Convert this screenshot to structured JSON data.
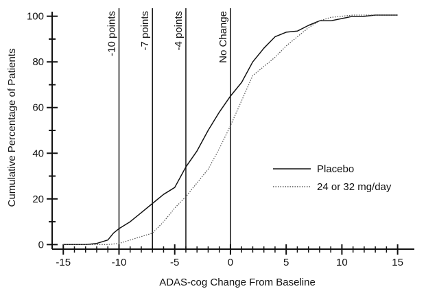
{
  "chart_data": {
    "type": "line",
    "title": "",
    "xlabel": "ADAS-cog Change From Baseline",
    "ylabel": "Cumulative Percentage of Patients",
    "xlim": [
      -16,
      16.5
    ],
    "ylim": [
      -2,
      102
    ],
    "xticks": [
      -15,
      -10,
      -5,
      0,
      5,
      10,
      15
    ],
    "yticks": [
      0,
      20,
      40,
      60,
      80,
      100
    ],
    "grid": false,
    "legend_position": "center-right",
    "reference_lines": [
      {
        "x": -10,
        "label": "-10 points"
      },
      {
        "x": -7,
        "label": "-7 points"
      },
      {
        "x": -4,
        "label": "-4 points"
      },
      {
        "x": 0,
        "label": "No Change"
      }
    ],
    "series": [
      {
        "name": "Placebo",
        "style": "solid",
        "color": "#111111",
        "x": [
          -15,
          -13,
          -12,
          -11,
          -10.5,
          -10,
          -9,
          -8,
          -7,
          -6,
          -5,
          -4,
          -3,
          -2,
          -1,
          0,
          1,
          2,
          3,
          4,
          5,
          6,
          7,
          8,
          9,
          10,
          11,
          12,
          13,
          14,
          15
        ],
        "y": [
          0,
          0,
          0.5,
          2,
          5,
          7,
          10,
          14,
          18,
          22,
          25,
          34,
          41,
          50,
          58,
          65,
          71,
          80,
          86,
          91,
          93,
          93.5,
          96,
          98,
          98,
          99,
          100,
          100,
          100.5,
          100.5,
          100.5
        ]
      },
      {
        "name": "24 or 32 mg/day",
        "style": "dotted",
        "color": "#555555",
        "x": [
          -15,
          -13,
          -11,
          -10,
          -9,
          -8,
          -7,
          -6,
          -5,
          -4,
          -3,
          -2,
          -1,
          0,
          1,
          2,
          3,
          4,
          5,
          6,
          7,
          8,
          9,
          10,
          11,
          12,
          13,
          14,
          15
        ],
        "y": [
          0,
          0,
          0,
          0.5,
          2,
          3.5,
          5,
          10,
          16,
          21,
          27,
          33,
          42,
          52,
          63,
          74,
          78,
          82,
          87,
          91,
          95,
          98,
          99.5,
          100,
          100.5,
          100.5,
          100.5,
          100.5,
          100.5
        ]
      }
    ]
  }
}
